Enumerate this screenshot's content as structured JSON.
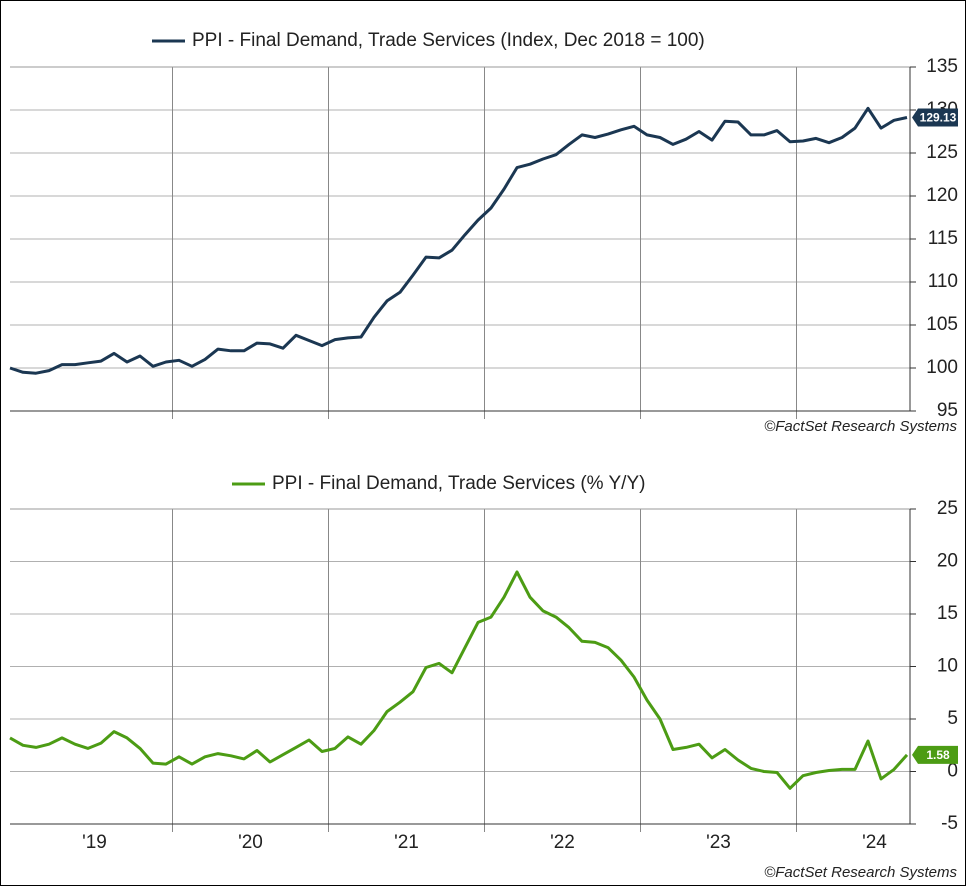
{
  "chart_data": [
    {
      "type": "line",
      "source": "©FactSet Research Systems",
      "series": [
        {
          "name": "PPI - Final Demand, Trade Services (Index, Dec 2018 = 100)",
          "color": "#1b3752",
          "values": [
            100,
            99.5,
            99.4,
            99.7,
            100.4,
            100.4,
            100.6,
            100.8,
            101.7,
            100.7,
            101.4,
            100.2,
            100.7,
            100.9,
            100.2,
            101,
            102.2,
            102,
            102,
            102.9,
            102.8,
            102.3,
            103.8,
            103.2,
            102.6,
            103.3,
            103.5,
            103.6,
            105.9,
            107.8,
            108.8,
            110.8,
            112.9,
            112.8,
            113.7,
            115.5,
            117.2,
            118.6,
            120.8,
            123.3,
            123.7,
            124.3,
            124.8,
            126,
            127.1,
            126.8,
            127.2,
            127.7,
            128.1,
            127.1,
            126.8,
            126,
            126.6,
            127.5,
            126.5,
            128.7,
            128.6,
            127.1,
            127.1,
            127.6,
            126.3,
            126.4,
            126.7,
            126.2,
            126.8,
            127.9,
            130.2,
            127.9,
            128.8,
            129.13
          ]
        }
      ],
      "ylim": [
        95,
        135
      ],
      "yticks": [
        95,
        100,
        105,
        110,
        115,
        120,
        125,
        130,
        135
      ],
      "grid": true
    },
    {
      "type": "line",
      "source": "©FactSet Research Systems",
      "categories": [
        null,
        null,
        null,
        null,
        null,
        null,
        null,
        "'19",
        null,
        null,
        null,
        null,
        null,
        null,
        null,
        null,
        null,
        null,
        null,
        "'20",
        null,
        null,
        null,
        null,
        null,
        null,
        null,
        null,
        null,
        null,
        null,
        "'21",
        null,
        null,
        null,
        null,
        null,
        null,
        null,
        null,
        null,
        null,
        null,
        "'22",
        null,
        null,
        null,
        null,
        null,
        null,
        null,
        null,
        null,
        null,
        null,
        "'23",
        null,
        null,
        null,
        null,
        null,
        null,
        null,
        null,
        null,
        null,
        null,
        "'24",
        null,
        null
      ],
      "series": [
        {
          "name": "PPI - Final Demand, Trade Services (% Y/Y)",
          "color": "#4c9c14",
          "values": [
            3.2,
            2.5,
            2.3,
            2.6,
            3.2,
            2.6,
            2.2,
            2.7,
            3.8,
            3.2,
            2.2,
            0.8,
            0.7,
            1.4,
            0.7,
            1.4,
            1.7,
            1.5,
            1.2,
            2.0,
            0.9,
            1.6,
            2.3,
            3.0,
            1.9,
            2.2,
            3.3,
            2.6,
            3.9,
            5.7,
            6.6,
            7.6,
            9.9,
            10.3,
            9.4,
            11.8,
            14.2,
            14.7,
            16.6,
            19.0,
            16.6,
            15.3,
            14.7,
            13.7,
            12.4,
            12.3,
            11.8,
            10.6,
            9.0,
            6.8,
            5.0,
            2.1,
            2.3,
            2.6,
            1.3,
            2.1,
            1.1,
            0.3,
            0.0,
            -0.1,
            -1.6,
            -0.4,
            -0.1,
            0.1,
            0.2,
            0.2,
            2.9,
            -0.7,
            0.2,
            1.58
          ]
        }
      ],
      "ylim": [
        -5,
        25
      ],
      "yticks": [
        -5,
        0,
        5,
        10,
        15,
        20,
        25
      ],
      "grid": true
    }
  ]
}
